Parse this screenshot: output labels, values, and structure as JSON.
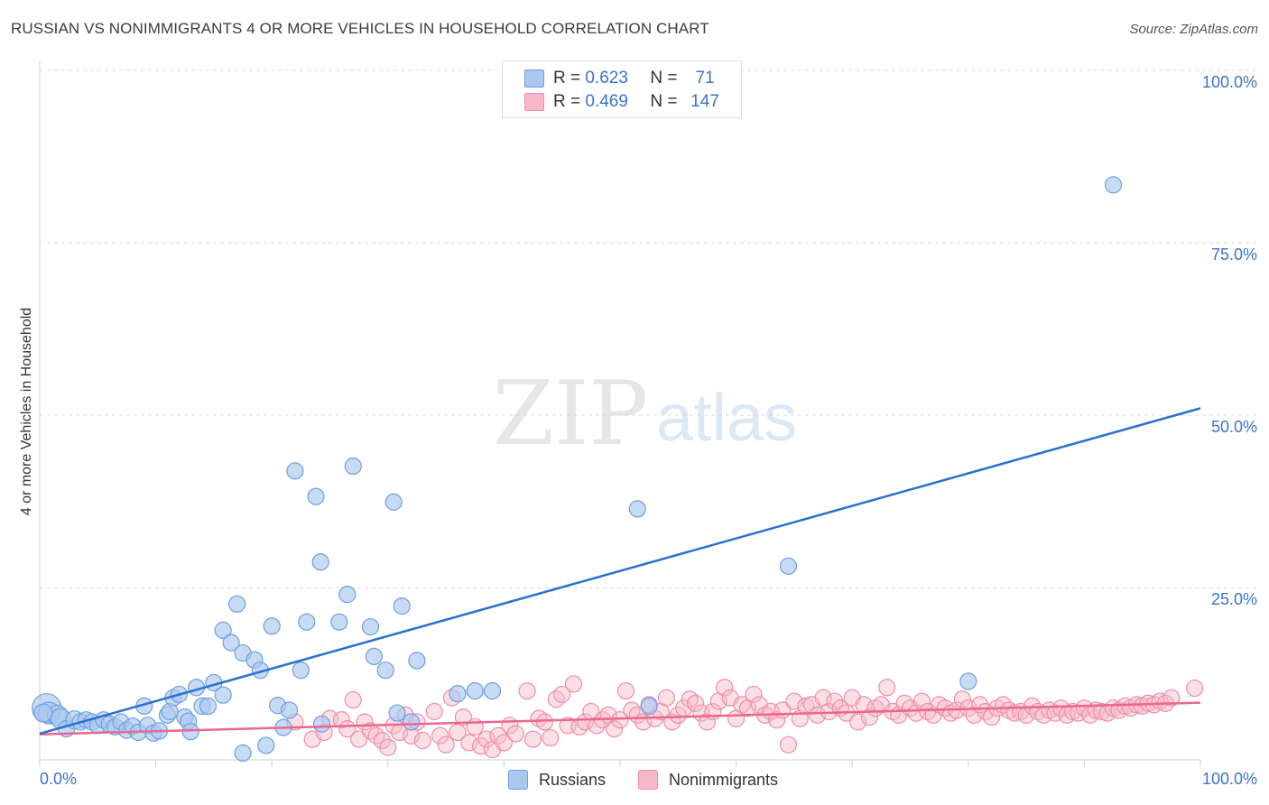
{
  "title": "RUSSIAN VS NONIMMIGRANTS 4 OR MORE VEHICLES IN HOUSEHOLD CORRELATION CHART",
  "source": "Source: ZipAtlas.com",
  "watermark": {
    "part1": "ZIP",
    "part2": "atlas"
  },
  "legend": {
    "r_label": "R =",
    "n_label": "N =",
    "rows": [
      {
        "r": "0.623",
        "n": "71",
        "color": "#a9c8f0"
      },
      {
        "r": "0.469",
        "n": "147",
        "color": "#f6b8ca"
      }
    ]
  },
  "bottom_legend": [
    "Russians",
    "Nonimmigrants"
  ],
  "colors": {
    "blue_fill": "#a9c8f0",
    "blue_stroke": "#6f9fdc",
    "blue_line": "#2c6fd0",
    "pink_fill": "#f6b8ca",
    "pink_stroke": "#ee8ea9",
    "pink_line": "#e9678f",
    "tick_label": "#3a73c8",
    "grid": "#dddddd"
  },
  "chart_data": {
    "type": "scatter",
    "title": "RUSSIAN VS NONIMMIGRANTS 4 OR MORE VEHICLES IN HOUSEHOLD CORRELATION CHART",
    "xlabel": "",
    "ylabel": "4 or more Vehicles in Household",
    "xlim": [
      0,
      100
    ],
    "ylim": [
      0,
      100
    ],
    "x_tick_labels": [
      "0.0%",
      "100.0%"
    ],
    "y_ticks": [
      25,
      50,
      75,
      100
    ],
    "y_tick_labels": [
      "25.0%",
      "50.0%",
      "75.0%",
      "100.0%"
    ],
    "grid": true,
    "series": [
      {
        "name": "Russians",
        "r": 0.623,
        "n": 71,
        "trend": {
          "x": [
            0,
            100
          ],
          "y": [
            3.8,
            51.0
          ]
        },
        "points": [
          [
            0.6,
            7.5,
            16
          ],
          [
            0.8,
            6.8,
            12
          ],
          [
            1.5,
            6.5,
            11
          ],
          [
            1.8,
            6.0,
            11
          ],
          [
            2.3,
            4.5,
            9
          ],
          [
            3.0,
            5.8,
            10
          ],
          [
            3.5,
            5.5,
            9
          ],
          [
            4.0,
            5.8,
            9
          ],
          [
            4.5,
            5.5,
            9
          ],
          [
            5.0,
            5.0,
            9
          ],
          [
            5.5,
            5.8,
            9
          ],
          [
            6.0,
            5.2,
            9
          ],
          [
            6.5,
            4.8,
            9
          ],
          [
            7.0,
            5.5,
            9
          ],
          [
            7.5,
            4.3,
            9
          ],
          [
            8.0,
            4.9,
            9
          ],
          [
            8.5,
            4.0,
            9
          ],
          [
            9.0,
            7.8,
            9
          ],
          [
            9.3,
            5.0,
            9
          ],
          [
            9.8,
            3.9,
            9
          ],
          [
            10.3,
            4.2,
            9
          ],
          [
            11.0,
            6.5,
            9
          ],
          [
            11.2,
            7.0,
            9
          ],
          [
            11.5,
            9.0,
            9
          ],
          [
            12.0,
            9.5,
            9
          ],
          [
            12.5,
            6.2,
            9
          ],
          [
            12.8,
            5.6,
            9
          ],
          [
            13.0,
            4.1,
            9
          ],
          [
            13.5,
            10.5,
            9
          ],
          [
            14.0,
            7.8,
            9
          ],
          [
            14.5,
            7.8,
            9
          ],
          [
            15.0,
            11.2,
            9
          ],
          [
            15.8,
            9.4,
            9
          ],
          [
            15.8,
            18.8,
            9
          ],
          [
            16.5,
            17.0,
            9
          ],
          [
            17.0,
            22.6,
            9
          ],
          [
            17.5,
            15.5,
            9
          ],
          [
            17.5,
            1.0,
            9
          ],
          [
            18.5,
            14.5,
            9
          ],
          [
            19.0,
            13.0,
            9
          ],
          [
            19.5,
            2.1,
            9
          ],
          [
            20.0,
            19.4,
            9
          ],
          [
            20.5,
            7.9,
            9
          ],
          [
            21.0,
            4.7,
            9
          ],
          [
            21.5,
            7.2,
            9
          ],
          [
            22.0,
            41.9,
            9
          ],
          [
            22.5,
            13.0,
            9
          ],
          [
            23.0,
            20.0,
            9
          ],
          [
            23.8,
            38.2,
            9
          ],
          [
            24.2,
            28.7,
            9
          ],
          [
            24.3,
            5.2,
            9
          ],
          [
            25.8,
            20.0,
            9
          ],
          [
            26.5,
            24.0,
            9
          ],
          [
            27.0,
            42.6,
            9
          ],
          [
            28.5,
            19.3,
            9
          ],
          [
            28.8,
            15.0,
            9
          ],
          [
            29.8,
            13.0,
            9
          ],
          [
            30.5,
            37.4,
            9
          ],
          [
            30.8,
            6.8,
            9
          ],
          [
            31.2,
            22.3,
            9
          ],
          [
            32.0,
            5.5,
            9
          ],
          [
            32.5,
            14.4,
            9
          ],
          [
            36.0,
            9.6,
            9
          ],
          [
            37.5,
            10.0,
            9
          ],
          [
            39.0,
            10.0,
            9
          ],
          [
            51.5,
            36.4,
            9
          ],
          [
            52.5,
            7.8,
            9
          ],
          [
            64.5,
            28.1,
            9
          ],
          [
            80.0,
            11.4,
            9
          ],
          [
            92.5,
            83.4,
            9
          ],
          [
            0.3,
            6.8,
            10
          ]
        ]
      },
      {
        "name": "Nonimmigrants",
        "r": 0.469,
        "n": 147,
        "trend": {
          "x": [
            0,
            100
          ],
          "y": [
            3.7,
            8.3
          ]
        },
        "points": [
          [
            22.0,
            5.5
          ],
          [
            23.5,
            3.0
          ],
          [
            24.5,
            4.0
          ],
          [
            25.0,
            6.0
          ],
          [
            26.0,
            5.8
          ],
          [
            26.5,
            4.5
          ],
          [
            27.0,
            8.7
          ],
          [
            27.5,
            3.0
          ],
          [
            28.0,
            5.5
          ],
          [
            28.5,
            4.2
          ],
          [
            29.0,
            3.5
          ],
          [
            29.5,
            2.8
          ],
          [
            30.0,
            1.8
          ],
          [
            30.5,
            5.0
          ],
          [
            31.0,
            4.0
          ],
          [
            31.5,
            6.5
          ],
          [
            32.0,
            3.5
          ],
          [
            32.5,
            5.5
          ],
          [
            33.0,
            2.8
          ],
          [
            34.0,
            7.0
          ],
          [
            34.5,
            3.5
          ],
          [
            35.0,
            2.2
          ],
          [
            35.5,
            9.0
          ],
          [
            36.0,
            4.0
          ],
          [
            36.5,
            6.2
          ],
          [
            37.0,
            2.5
          ],
          [
            37.5,
            4.8
          ],
          [
            38.0,
            2.0
          ],
          [
            38.5,
            3.0
          ],
          [
            39.0,
            1.5
          ],
          [
            39.5,
            3.5
          ],
          [
            40.0,
            2.5
          ],
          [
            40.5,
            5.0
          ],
          [
            41.0,
            3.8
          ],
          [
            42.0,
            10.0
          ],
          [
            42.5,
            3.0
          ],
          [
            43.0,
            6.0
          ],
          [
            43.5,
            5.5
          ],
          [
            44.0,
            3.2
          ],
          [
            44.5,
            8.8
          ],
          [
            45.0,
            9.5
          ],
          [
            45.5,
            5.0
          ],
          [
            46.0,
            11.0
          ],
          [
            46.5,
            4.8
          ],
          [
            47.0,
            5.5
          ],
          [
            47.5,
            7.0
          ],
          [
            48.0,
            5.0
          ],
          [
            48.5,
            5.8
          ],
          [
            49.0,
            6.5
          ],
          [
            49.5,
            4.5
          ],
          [
            50.0,
            5.8
          ],
          [
            50.5,
            10.0
          ],
          [
            51.0,
            7.2
          ],
          [
            51.5,
            6.5
          ],
          [
            52.0,
            5.5
          ],
          [
            52.5,
            8.0
          ],
          [
            53.0,
            6.0
          ],
          [
            53.5,
            7.0
          ],
          [
            54.0,
            9.0
          ],
          [
            54.5,
            5.5
          ],
          [
            55.0,
            6.5
          ],
          [
            55.5,
            7.5
          ],
          [
            56.0,
            8.8
          ],
          [
            56.5,
            8.2
          ],
          [
            57.0,
            6.8
          ],
          [
            57.5,
            5.5
          ],
          [
            58.0,
            7.0
          ],
          [
            58.5,
            8.5
          ],
          [
            59.0,
            10.5
          ],
          [
            59.5,
            9.0
          ],
          [
            60.0,
            6.0
          ],
          [
            60.5,
            8.0
          ],
          [
            61.0,
            7.5
          ],
          [
            61.5,
            9.5
          ],
          [
            62.0,
            8.0
          ],
          [
            62.5,
            6.5
          ],
          [
            63.0,
            7.0
          ],
          [
            63.5,
            5.8
          ],
          [
            64.0,
            7.2
          ],
          [
            64.5,
            2.2
          ],
          [
            65.0,
            8.5
          ],
          [
            65.5,
            6.0
          ],
          [
            66.0,
            7.8
          ],
          [
            66.5,
            8.0
          ],
          [
            67.0,
            6.5
          ],
          [
            67.5,
            9.0
          ],
          [
            68.0,
            7.0
          ],
          [
            68.5,
            8.5
          ],
          [
            69.0,
            7.5
          ],
          [
            69.5,
            6.8
          ],
          [
            70.0,
            9.0
          ],
          [
            70.5,
            5.5
          ],
          [
            71.0,
            8.0
          ],
          [
            71.5,
            6.2
          ],
          [
            72.0,
            7.5
          ],
          [
            72.5,
            8.0
          ],
          [
            73.0,
            10.5
          ],
          [
            73.5,
            7.0
          ],
          [
            74.0,
            6.5
          ],
          [
            74.5,
            8.2
          ],
          [
            75.0,
            7.5
          ],
          [
            75.5,
            6.8
          ],
          [
            76.0,
            8.5
          ],
          [
            76.5,
            7.0
          ],
          [
            77.0,
            6.5
          ],
          [
            77.5,
            8.0
          ],
          [
            78.0,
            7.5
          ],
          [
            78.5,
            6.8
          ],
          [
            79.0,
            7.2
          ],
          [
            79.5,
            8.8
          ],
          [
            80.0,
            7.5
          ],
          [
            80.5,
            6.5
          ],
          [
            81.0,
            8.0
          ],
          [
            81.5,
            7.0
          ],
          [
            82.0,
            6.2
          ],
          [
            82.5,
            7.5
          ],
          [
            83.0,
            8.0
          ],
          [
            83.5,
            7.2
          ],
          [
            84.0,
            6.8
          ],
          [
            84.5,
            7.0
          ],
          [
            85.0,
            6.5
          ],
          [
            85.5,
            7.8
          ],
          [
            86.0,
            7.0
          ],
          [
            86.5,
            6.5
          ],
          [
            87.0,
            7.2
          ],
          [
            87.5,
            6.8
          ],
          [
            88.0,
            7.5
          ],
          [
            88.5,
            6.5
          ],
          [
            89.0,
            7.0
          ],
          [
            89.5,
            6.8
          ],
          [
            90.0,
            7.5
          ],
          [
            90.5,
            6.5
          ],
          [
            91.0,
            7.2
          ],
          [
            91.5,
            7.0
          ],
          [
            92.0,
            6.8
          ],
          [
            92.5,
            7.5
          ],
          [
            93.0,
            7.2
          ],
          [
            93.5,
            7.8
          ],
          [
            94.0,
            7.5
          ],
          [
            94.5,
            8.0
          ],
          [
            95.0,
            7.8
          ],
          [
            95.5,
            8.2
          ],
          [
            96.0,
            8.0
          ],
          [
            96.5,
            8.5
          ],
          [
            97.0,
            8.2
          ],
          [
            97.5,
            9.0
          ],
          [
            99.5,
            10.4
          ]
        ]
      }
    ]
  }
}
